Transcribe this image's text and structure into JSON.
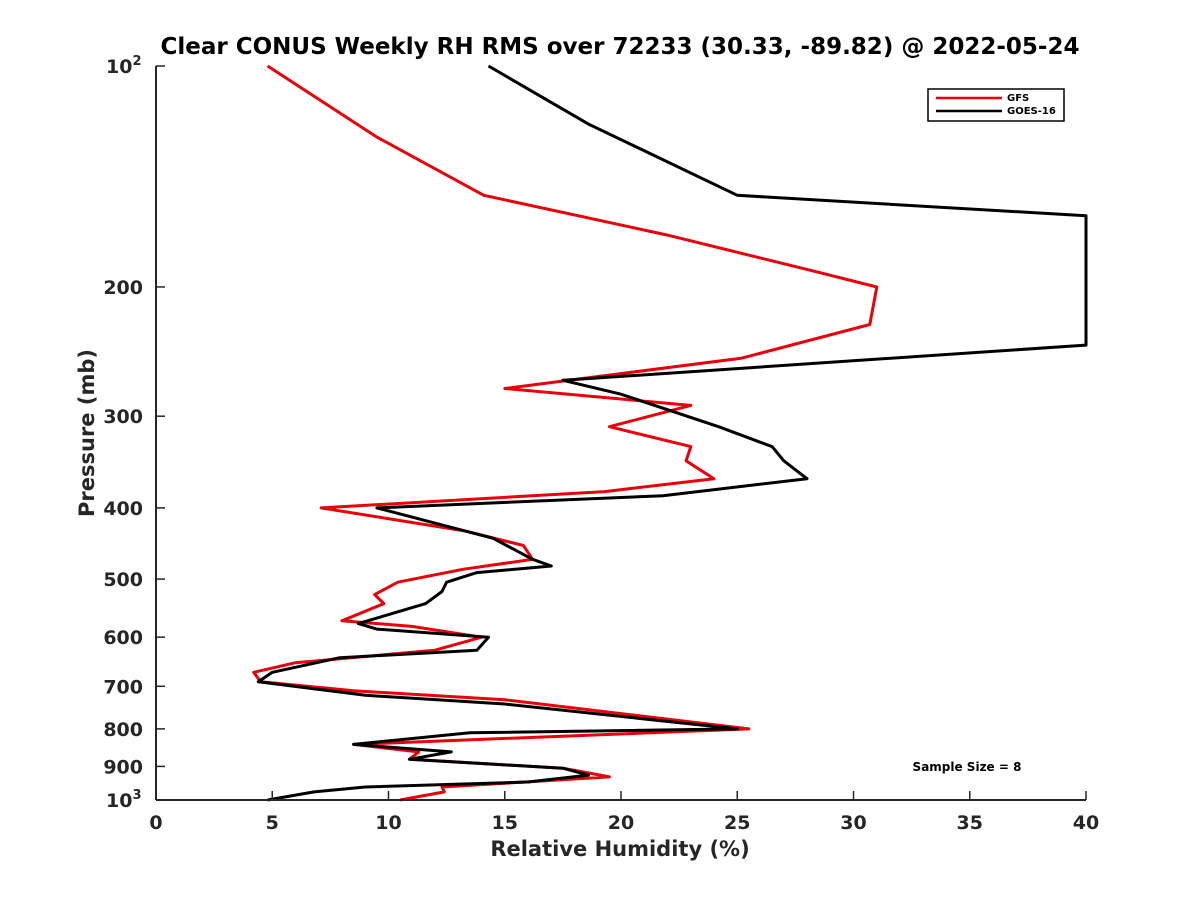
{
  "chart_data": {
    "type": "line",
    "title": "Clear CONUS Weekly RH RMS over 72233 (30.33, -89.82) @ 2022-05-24",
    "xlabel": "Relative Humidity (%)",
    "ylabel": "Pressure (mb)",
    "xlim": [
      0,
      40
    ],
    "ylim": [
      100,
      1000
    ],
    "y_scale": "log",
    "y_reversed": true,
    "x_ticks": [
      0,
      5,
      10,
      15,
      20,
      25,
      30,
      35,
      40
    ],
    "y_ticks": [
      {
        "value": 100,
        "label": "10",
        "exp": "2"
      },
      {
        "value": 200,
        "label": "200"
      },
      {
        "value": 300,
        "label": "300"
      },
      {
        "value": 400,
        "label": "400"
      },
      {
        "value": 500,
        "label": "500"
      },
      {
        "value": 600,
        "label": "600"
      },
      {
        "value": 700,
        "label": "700"
      },
      {
        "value": 800,
        "label": "800"
      },
      {
        "value": 900,
        "label": "900"
      },
      {
        "value": 1000,
        "label": "10",
        "exp": "3"
      }
    ],
    "legend_position": "top-right",
    "grid": false,
    "annotation": "Sample Size = 8",
    "series": [
      {
        "name": "GFS",
        "color": "#e8000b",
        "points": [
          [
            4.8,
            100
          ],
          [
            9.5,
            125
          ],
          [
            14.1,
            150
          ],
          [
            22.0,
            170
          ],
          [
            28.2,
            190
          ],
          [
            31.0,
            200
          ],
          [
            30.7,
            225
          ],
          [
            25.2,
            250
          ],
          [
            15.0,
            275
          ],
          [
            23.0,
            290
          ],
          [
            19.5,
            310
          ],
          [
            23.0,
            330
          ],
          [
            22.8,
            345
          ],
          [
            24.0,
            365
          ],
          [
            19.3,
            380
          ],
          [
            7.1,
            400
          ],
          [
            13.3,
            430
          ],
          [
            15.8,
            450
          ],
          [
            16.2,
            470
          ],
          [
            13.2,
            485
          ],
          [
            10.4,
            505
          ],
          [
            9.4,
            525
          ],
          [
            9.8,
            540
          ],
          [
            8.0,
            570
          ],
          [
            11.0,
            580
          ],
          [
            14.0,
            600
          ],
          [
            12.0,
            625
          ],
          [
            6.0,
            650
          ],
          [
            4.2,
            670
          ],
          [
            4.5,
            690
          ],
          [
            8.5,
            710
          ],
          [
            15.0,
            730
          ],
          [
            25.5,
            800
          ],
          [
            8.5,
            840
          ],
          [
            11.3,
            860
          ],
          [
            10.9,
            880
          ],
          [
            17.5,
            905
          ],
          [
            19.5,
            930
          ],
          [
            12.3,
            960
          ],
          [
            12.4,
            975
          ],
          [
            10.5,
            1000
          ]
        ]
      },
      {
        "name": "GOES-16",
        "color": "#000000",
        "points": [
          [
            14.3,
            100
          ],
          [
            18.6,
            120
          ],
          [
            25.0,
            150
          ],
          [
            40.0,
            160
          ],
          [
            40.0,
            240
          ],
          [
            17.5,
            268
          ],
          [
            20.0,
            280
          ],
          [
            24.2,
            310
          ],
          [
            26.5,
            330
          ],
          [
            27.0,
            345
          ],
          [
            28.0,
            365
          ],
          [
            21.8,
            385
          ],
          [
            9.5,
            400
          ],
          [
            14.5,
            440
          ],
          [
            16.2,
            470
          ],
          [
            17.0,
            480
          ],
          [
            13.8,
            490
          ],
          [
            12.5,
            505
          ],
          [
            12.3,
            520
          ],
          [
            11.6,
            540
          ],
          [
            8.7,
            575
          ],
          [
            9.5,
            585
          ],
          [
            14.3,
            600
          ],
          [
            13.8,
            625
          ],
          [
            7.9,
            640
          ],
          [
            5.0,
            670
          ],
          [
            4.4,
            690
          ],
          [
            9.0,
            720
          ],
          [
            15.0,
            740
          ],
          [
            25.0,
            800
          ],
          [
            13.5,
            810
          ],
          [
            8.5,
            840
          ],
          [
            12.7,
            860
          ],
          [
            10.9,
            880
          ],
          [
            17.5,
            905
          ],
          [
            18.6,
            925
          ],
          [
            16.0,
            945
          ],
          [
            9.0,
            960
          ],
          [
            6.8,
            975
          ],
          [
            4.8,
            1000
          ]
        ]
      }
    ]
  }
}
